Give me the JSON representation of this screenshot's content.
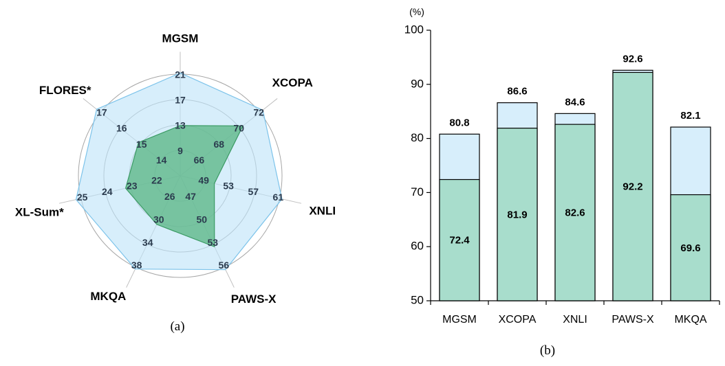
{
  "chart_data": [
    {
      "type": "radar",
      "caption": "(a)",
      "axes": [
        "MGSM",
        "XCOPA",
        "XNLI",
        "PAWS-X",
        "MKQA",
        "XL-Sum*",
        "FLORES*"
      ],
      "ring_labels": [
        [
          "9",
          "13",
          "17",
          "21"
        ],
        [
          "66",
          "68",
          "70",
          "72"
        ],
        [
          "49",
          "53",
          "57",
          "61"
        ],
        [
          "47",
          "50",
          "53",
          "56"
        ],
        [
          "26",
          "30",
          "34",
          "38"
        ],
        [
          "22",
          "23",
          "24",
          "25"
        ],
        [
          "14",
          "15",
          "16",
          "17"
        ]
      ],
      "series": [
        {
          "color": "#bfe3f8",
          "stroke": "#7cc3ea",
          "values": [
            21.2,
            72.3,
            61.4,
            56.3,
            38.3,
            25.2,
            17.2
          ]
        },
        {
          "color": "#5fb88a",
          "stroke": "#3a9a63",
          "values": [
            12.9,
            70.3,
            50.5,
            53.3,
            30.5,
            23.2,
            15.1
          ]
        }
      ]
    },
    {
      "type": "bar",
      "caption": "(b)",
      "ylabel": "(%)",
      "ylim": [
        50,
        100
      ],
      "yticks": [
        50,
        60,
        70,
        80,
        90,
        100
      ],
      "categories": [
        "MGSM",
        "XCOPA",
        "XNLI",
        "PAWS-X",
        "MKQA"
      ],
      "series": [
        {
          "color": "#a8ddcc",
          "values": [
            72.4,
            81.9,
            82.6,
            92.2,
            69.6
          ],
          "labels": [
            "72.4",
            "81.9",
            "82.6",
            "92.2",
            "69.6"
          ]
        },
        {
          "color": "#d7eefb",
          "values": [
            80.8,
            86.6,
            84.6,
            92.6,
            82.1
          ],
          "labels": [
            "80.8",
            "86.6",
            "84.6",
            "92.6",
            "82.1"
          ]
        }
      ]
    }
  ]
}
